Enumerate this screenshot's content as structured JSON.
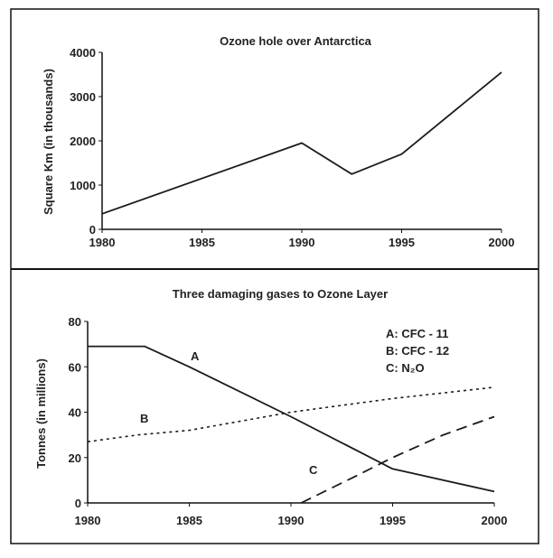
{
  "chart_data": [
    {
      "type": "line",
      "title": "Ozone hole over Antarctica",
      "xlabel": "",
      "ylabel": "Square Km (in thousands)",
      "xlim": [
        1980,
        2000
      ],
      "ylim": [
        0,
        4000
      ],
      "x_ticks": [
        "1980",
        "1985",
        "1990",
        "1995",
        "2000"
      ],
      "y_ticks": [
        "0",
        "1000",
        "2000",
        "3000",
        "4000"
      ],
      "grid": false,
      "series": [
        {
          "name": "",
          "points": [
            [
              1980,
              350
            ],
            [
              1990,
              1950
            ],
            [
              1992.5,
              1250
            ],
            [
              1995,
              1700
            ],
            [
              2000,
              3550
            ]
          ]
        }
      ]
    },
    {
      "type": "line",
      "title": "Three damaging gases to Ozone Layer",
      "xlabel": "",
      "ylabel": "Tonnes (in millions)",
      "xlim": [
        1980,
        2000
      ],
      "ylim": [
        0,
        80
      ],
      "x_ticks": [
        "1980",
        "1985",
        "1990",
        "1995",
        "2000"
      ],
      "y_ticks": [
        "0",
        "20",
        "40",
        "60",
        "80"
      ],
      "grid": false,
      "legend": {
        "position": "top-right",
        "entries": [
          "A: CFC - 11",
          "B: CFC - 12",
          "C: N₂O"
        ]
      },
      "series": [
        {
          "name": "A",
          "style": "solid",
          "points": [
            [
              1980,
              69
            ],
            [
              1982.8,
              69
            ],
            [
              1985,
              60
            ],
            [
              1990,
              38
            ],
            [
              1995,
              15
            ],
            [
              1996,
              13
            ],
            [
              2000,
              5
            ]
          ]
        },
        {
          "name": "B",
          "style": "dotted",
          "points": [
            [
              1980,
              27
            ],
            [
              1982.5,
              30
            ],
            [
              1985,
              32
            ],
            [
              1990,
              40
            ],
            [
              1995,
              46
            ],
            [
              2000,
              51
            ]
          ]
        },
        {
          "name": "C",
          "style": "dashed",
          "points": [
            [
              1990.5,
              0
            ],
            [
              1993,
              11
            ],
            [
              1995,
              20
            ],
            [
              1997.5,
              30
            ],
            [
              2000,
              38
            ]
          ]
        }
      ]
    }
  ]
}
